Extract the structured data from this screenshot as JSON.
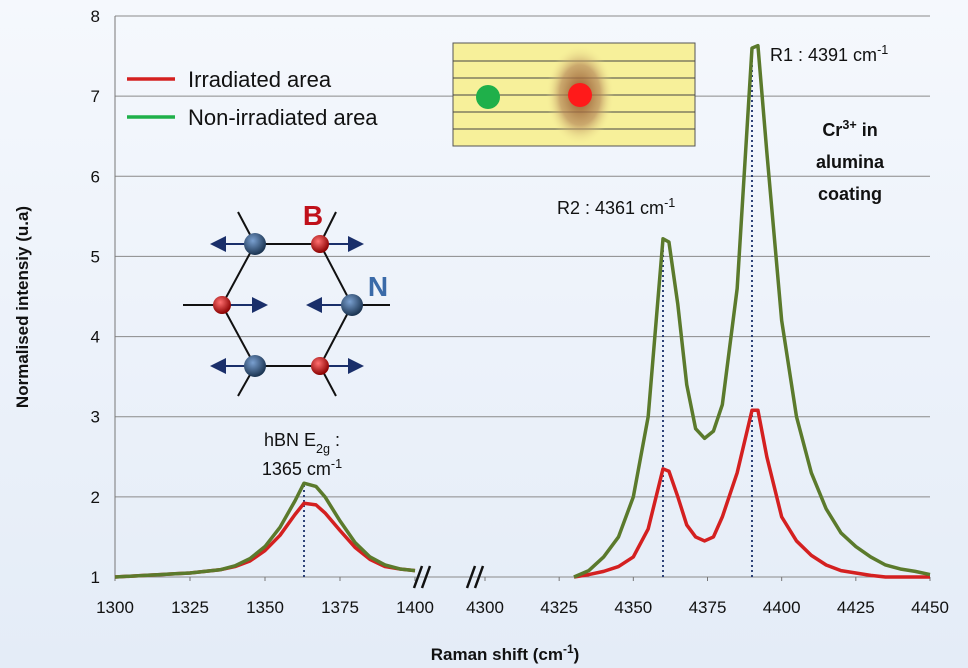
{
  "chart_data": {
    "type": "line",
    "y_label": "Normalised intensiy (u.a)",
    "x_label": [
      {
        "t": "Raman shift (cm"
      },
      {
        "t": "-1",
        "sup": true
      },
      {
        "t": ")"
      }
    ],
    "ylim": [
      1,
      8
    ],
    "yticks": [
      1,
      2,
      3,
      4,
      5,
      6,
      7,
      8
    ],
    "grid": true,
    "series": [
      {
        "name": "Irradiated area",
        "color": "#d42020"
      },
      {
        "name": "Non-irradiated area",
        "color": "#5b7a2c",
        "legend_color": "#1fb04a"
      }
    ],
    "panels": [
      {
        "xlim": [
          1300,
          1400
        ],
        "xticks": [
          1300,
          1325,
          1350,
          1375,
          1400
        ],
        "x": [
          1300,
          1305,
          1310,
          1315,
          1320,
          1325,
          1330,
          1335,
          1340,
          1345,
          1350,
          1355,
          1360,
          1363,
          1367,
          1370,
          1375,
          1380,
          1385,
          1390,
          1395,
          1400
        ],
        "values": [
          [
            1.0,
            1.01,
            1.02,
            1.03,
            1.04,
            1.05,
            1.07,
            1.09,
            1.13,
            1.2,
            1.33,
            1.52,
            1.78,
            1.92,
            1.9,
            1.8,
            1.58,
            1.37,
            1.22,
            1.13,
            1.1,
            1.08
          ],
          [
            1.0,
            1.01,
            1.02,
            1.03,
            1.04,
            1.05,
            1.07,
            1.09,
            1.14,
            1.23,
            1.38,
            1.62,
            1.95,
            2.17,
            2.13,
            2.0,
            1.7,
            1.43,
            1.25,
            1.15,
            1.1,
            1.08
          ]
        ]
      },
      {
        "xlim": [
          4300,
          4450
        ],
        "xticks": [
          4300,
          4325,
          4350,
          4375,
          4400,
          4425,
          4450
        ],
        "x": [
          4330,
          4335,
          4340,
          4345,
          4350,
          4355,
          4360,
          4362,
          4365,
          4368,
          4371,
          4374,
          4377,
          4380,
          4385,
          4390,
          4392,
          4395,
          4400,
          4405,
          4410,
          4415,
          4420,
          4425,
          4430,
          4435,
          4440,
          4445,
          4450
        ],
        "values": [
          [
            1.0,
            1.03,
            1.07,
            1.13,
            1.25,
            1.6,
            2.35,
            2.32,
            2.0,
            1.65,
            1.5,
            1.45,
            1.5,
            1.75,
            2.3,
            3.08,
            3.08,
            2.5,
            1.75,
            1.45,
            1.27,
            1.15,
            1.08,
            1.05,
            1.02,
            1.0,
            1.0,
            1.0,
            1.0
          ],
          [
            1.0,
            1.08,
            1.25,
            1.5,
            2.0,
            3.0,
            5.22,
            5.18,
            4.4,
            3.4,
            2.85,
            2.73,
            2.82,
            3.15,
            4.6,
            7.6,
            7.63,
            6.3,
            4.2,
            3.0,
            2.3,
            1.85,
            1.55,
            1.38,
            1.25,
            1.15,
            1.1,
            1.07,
            1.03
          ]
        ]
      }
    ],
    "peak_lines": [
      {
        "panel": 0,
        "x": 1363,
        "y": 2.17
      },
      {
        "panel": 1,
        "x": 4360,
        "y": 5.22
      },
      {
        "panel": 1,
        "x": 4390,
        "y": 7.6
      }
    ],
    "annotations": [
      {
        "lines": [
          [
            {
              "t": "R1 : 4391 cm"
            },
            {
              "t": "-1",
              "sup": true
            }
          ]
        ],
        "color": "#111"
      },
      {
        "lines": [
          [
            {
              "t": "R2 : 4361 cm"
            },
            {
              "t": "-1",
              "sup": true
            }
          ]
        ],
        "color": "#111"
      },
      {
        "lines": [
          [
            {
              "t": "Cr"
            },
            {
              "t": "3+",
              "sup": true
            },
            {
              "t": " in"
            }
          ],
          [
            {
              "t": "alumina"
            }
          ],
          [
            {
              "t": "coating"
            }
          ]
        ],
        "color": "#111",
        "bold": true
      },
      {
        "lines": [
          [
            {
              "t": "hBN E"
            },
            {
              "t": "2g",
              "sub": true
            },
            {
              "t": " :"
            }
          ],
          [
            {
              "t": "1365 cm"
            },
            {
              "t": "-1",
              "sup": true
            }
          ]
        ],
        "color": "#111"
      },
      {
        "lines": [
          [
            {
              "t": "B"
            }
          ]
        ],
        "color": "#c0101a",
        "bold": true
      },
      {
        "lines": [
          [
            {
              "t": "N"
            }
          ]
        ],
        "color": "#3a6aa8",
        "bold": true
      }
    ]
  }
}
